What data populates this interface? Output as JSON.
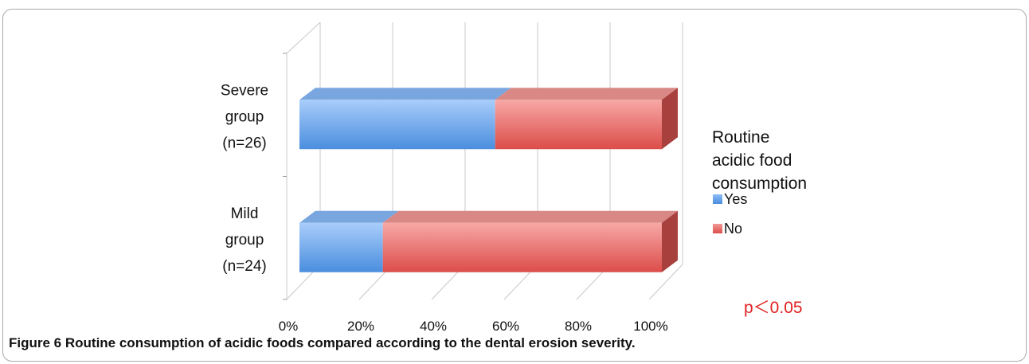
{
  "chart_data": {
    "type": "bar",
    "orientation": "horizontal",
    "stacked": "percent",
    "three_d": true,
    "categories": [
      [
        "Severe",
        "group",
        "(n=26)"
      ],
      [
        "Mild",
        "group",
        "(n=24)"
      ]
    ],
    "series": [
      {
        "name": "Yes",
        "color": "#5b9be6",
        "values": [
          54,
          23
        ]
      },
      {
        "name": "No",
        "color": "#e35a57",
        "values": [
          46,
          77
        ]
      }
    ],
    "x_ticks": [
      "0%",
      "20%",
      "40%",
      "60%",
      "80%",
      "100%"
    ],
    "xlim": [
      0,
      100
    ],
    "grid": true,
    "legend": {
      "title_lines": [
        "Routine",
        "acidic food",
        "consumption"
      ],
      "placement": "right"
    },
    "annotation": {
      "text": "p＜0.05",
      "color": "#e02020"
    }
  },
  "caption": {
    "label": "Figure 6",
    "text": "Routine consumption of acidic foods compared according to the dental erosion severity."
  }
}
